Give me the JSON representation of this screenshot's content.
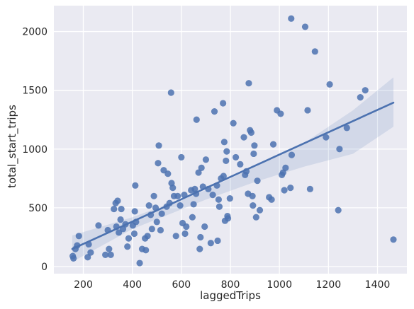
{
  "chart_data": {
    "type": "scatter",
    "title": "",
    "xlabel": "laggedTrips",
    "ylabel": "total_start_trips",
    "xlim": [
      80,
      1520
    ],
    "ylim": [
      -60,
      2220
    ],
    "xticks": [
      200,
      400,
      600,
      800,
      1000,
      1200,
      1400
    ],
    "yticks": [
      0,
      500,
      1000,
      1500,
      2000
    ],
    "grid": true,
    "legend": "none",
    "colors": {
      "background": "#eaeaf2",
      "grid": "#ffffff",
      "points": "#4c72b0",
      "band": "#4c72b0"
    },
    "regression": {
      "x": [
        155,
        1465
      ],
      "y": [
        150,
        1395
      ]
    },
    "ci_band": {
      "x": [
        155,
        400,
        700,
        900,
        1100,
        1300,
        1465
      ],
      "lower": [
        40,
        320,
        570,
        720,
        850,
        960,
        1190
      ],
      "upper": [
        265,
        420,
        650,
        850,
        1050,
        1330,
        1610
      ]
    },
    "points": [
      [
        157,
        90
      ],
      [
        160,
        70
      ],
      [
        168,
        150
      ],
      [
        175,
        180
      ],
      [
        182,
        260
      ],
      [
        218,
        80
      ],
      [
        222,
        190
      ],
      [
        230,
        120
      ],
      [
        262,
        350
      ],
      [
        290,
        100
      ],
      [
        300,
        310
      ],
      [
        305,
        150
      ],
      [
        312,
        100
      ],
      [
        325,
        490
      ],
      [
        332,
        540
      ],
      [
        340,
        560
      ],
      [
        335,
        340
      ],
      [
        345,
        290
      ],
      [
        352,
        400
      ],
      [
        355,
        490
      ],
      [
        362,
        320
      ],
      [
        372,
        360
      ],
      [
        380,
        170
      ],
      [
        385,
        240
      ],
      [
        402,
        350
      ],
      [
        408,
        280
      ],
      [
        410,
        470
      ],
      [
        412,
        690
      ],
      [
        415,
        380
      ],
      [
        430,
        30
      ],
      [
        440,
        150
      ],
      [
        452,
        240
      ],
      [
        455,
        140
      ],
      [
        462,
        260
      ],
      [
        468,
        520
      ],
      [
        475,
        440
      ],
      [
        480,
        320
      ],
      [
        488,
        600
      ],
      [
        495,
        500
      ],
      [
        500,
        380
      ],
      [
        505,
        880
      ],
      [
        508,
        1030
      ],
      [
        515,
        310
      ],
      [
        520,
        450
      ],
      [
        528,
        820
      ],
      [
        540,
        510
      ],
      [
        545,
        790
      ],
      [
        552,
        540
      ],
      [
        558,
        1480
      ],
      [
        560,
        710
      ],
      [
        565,
        670
      ],
      [
        570,
        600
      ],
      [
        578,
        260
      ],
      [
        585,
        600
      ],
      [
        595,
        520
      ],
      [
        600,
        930
      ],
      [
        605,
        370
      ],
      [
        612,
        610
      ],
      [
        615,
        280
      ],
      [
        620,
        340
      ],
      [
        640,
        650
      ],
      [
        645,
        420
      ],
      [
        650,
        530
      ],
      [
        655,
        660
      ],
      [
        660,
        620
      ],
      [
        662,
        1250
      ],
      [
        670,
        800
      ],
      [
        675,
        150
      ],
      [
        678,
        250
      ],
      [
        682,
        840
      ],
      [
        688,
        680
      ],
      [
        695,
        340
      ],
      [
        700,
        910
      ],
      [
        710,
        660
      ],
      [
        720,
        200
      ],
      [
        728,
        610
      ],
      [
        735,
        1320
      ],
      [
        745,
        690
      ],
      [
        748,
        220
      ],
      [
        752,
        570
      ],
      [
        755,
        510
      ],
      [
        762,
        750
      ],
      [
        770,
        1390
      ],
      [
        772,
        770
      ],
      [
        775,
        1060
      ],
      [
        778,
        390
      ],
      [
        782,
        900
      ],
      [
        785,
        980
      ],
      [
        788,
        430
      ],
      [
        790,
        410
      ],
      [
        798,
        580
      ],
      [
        812,
        1220
      ],
      [
        822,
        930
      ],
      [
        840,
        870
      ],
      [
        855,
        1100
      ],
      [
        860,
        780
      ],
      [
        865,
        810
      ],
      [
        872,
        620
      ],
      [
        875,
        1560
      ],
      [
        880,
        1160
      ],
      [
        885,
        1140
      ],
      [
        890,
        600
      ],
      [
        892,
        520
      ],
      [
        895,
        960
      ],
      [
        898,
        1030
      ],
      [
        905,
        420
      ],
      [
        910,
        730
      ],
      [
        920,
        480
      ],
      [
        958,
        590
      ],
      [
        968,
        570
      ],
      [
        975,
        1040
      ],
      [
        990,
        1330
      ],
      [
        1005,
        1300
      ],
      [
        1010,
        780
      ],
      [
        1015,
        800
      ],
      [
        1020,
        650
      ],
      [
        1025,
        840
      ],
      [
        1045,
        670
      ],
      [
        1048,
        2110
      ],
      [
        1050,
        950
      ],
      [
        1105,
        2040
      ],
      [
        1115,
        1330
      ],
      [
        1125,
        660
      ],
      [
        1145,
        1830
      ],
      [
        1190,
        1100
      ],
      [
        1205,
        1550
      ],
      [
        1240,
        480
      ],
      [
        1245,
        1000
      ],
      [
        1275,
        1180
      ],
      [
        1330,
        1440
      ],
      [
        1350,
        1500
      ],
      [
        1465,
        230
      ]
    ]
  }
}
